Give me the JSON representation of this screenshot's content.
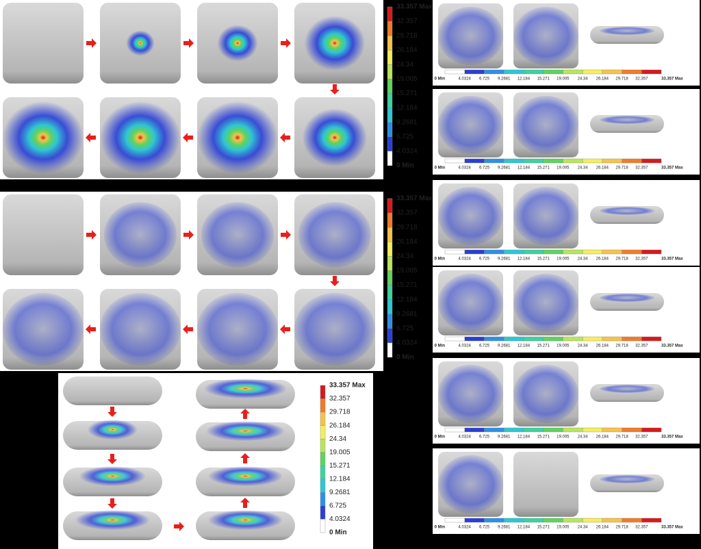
{
  "colorbar": {
    "labels": [
      "33.357 Max",
      "32.357",
      "29.718",
      "26.184",
      "24.34",
      "19.005",
      "15.271",
      "12.184",
      "9.2681",
      "6.725",
      "4.0324",
      "0 Min"
    ],
    "colors": [
      "#d7191c",
      "#f07b2a",
      "#f6c24a",
      "#f3ef5a",
      "#b9e65a",
      "#5fd35f",
      "#3dd2a0",
      "#2fc6d3",
      "#2f8fe6",
      "#2a3fd6",
      "#ffffff"
    ]
  }
}
